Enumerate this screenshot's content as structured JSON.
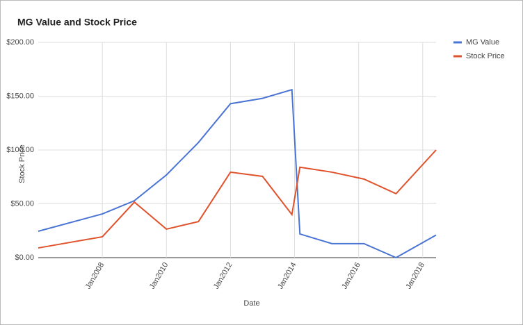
{
  "chart_data": {
    "type": "line",
    "title": "MG Value and Stock Price",
    "x_label": "Date",
    "y_label": "Stock Price",
    "x": [
      "2006-01",
      "2008-01",
      "2009-01",
      "2010-01",
      "2011-01",
      "2012-01",
      "2013-01",
      "2013-12",
      "2014-03",
      "2015-03",
      "2016-03",
      "2017-03",
      "2018-06"
    ],
    "series": [
      {
        "name": "MG Value",
        "color": "#4a74d4",
        "values": [
          24.5,
          40.6,
          52.9,
          76.8,
          107,
          143,
          148,
          156,
          22,
          13,
          13,
          0,
          21
        ]
      },
      {
        "name": "Stock Price",
        "color": "#e0522b",
        "values": [
          9,
          19.4,
          51.6,
          26.5,
          33.5,
          79.4,
          75.5,
          40,
          84,
          79.4,
          73,
          59.4,
          100
        ]
      }
    ],
    "xlim": [
      "2006-01",
      "2018-06"
    ],
    "xticks": [
      {
        "value": "2008-01",
        "label": "Jan2008"
      },
      {
        "value": "2010-01",
        "label": "Jan2010"
      },
      {
        "value": "2012-01",
        "label": "Jan2012"
      },
      {
        "value": "2014-01",
        "label": "Jan2014"
      },
      {
        "value": "2016-01",
        "label": "Jan2016"
      },
      {
        "value": "2018-01",
        "label": "Jan2018"
      }
    ],
    "ylim": [
      0,
      200
    ],
    "yticks": [
      {
        "value": 0,
        "label": "$0.00"
      },
      {
        "value": 50,
        "label": "$50.00"
      },
      {
        "value": 100,
        "label": "$100.00"
      },
      {
        "value": 150,
        "label": "$150.00"
      },
      {
        "value": 200,
        "label": "$200.00"
      }
    ],
    "grid": true,
    "legend": "right"
  }
}
